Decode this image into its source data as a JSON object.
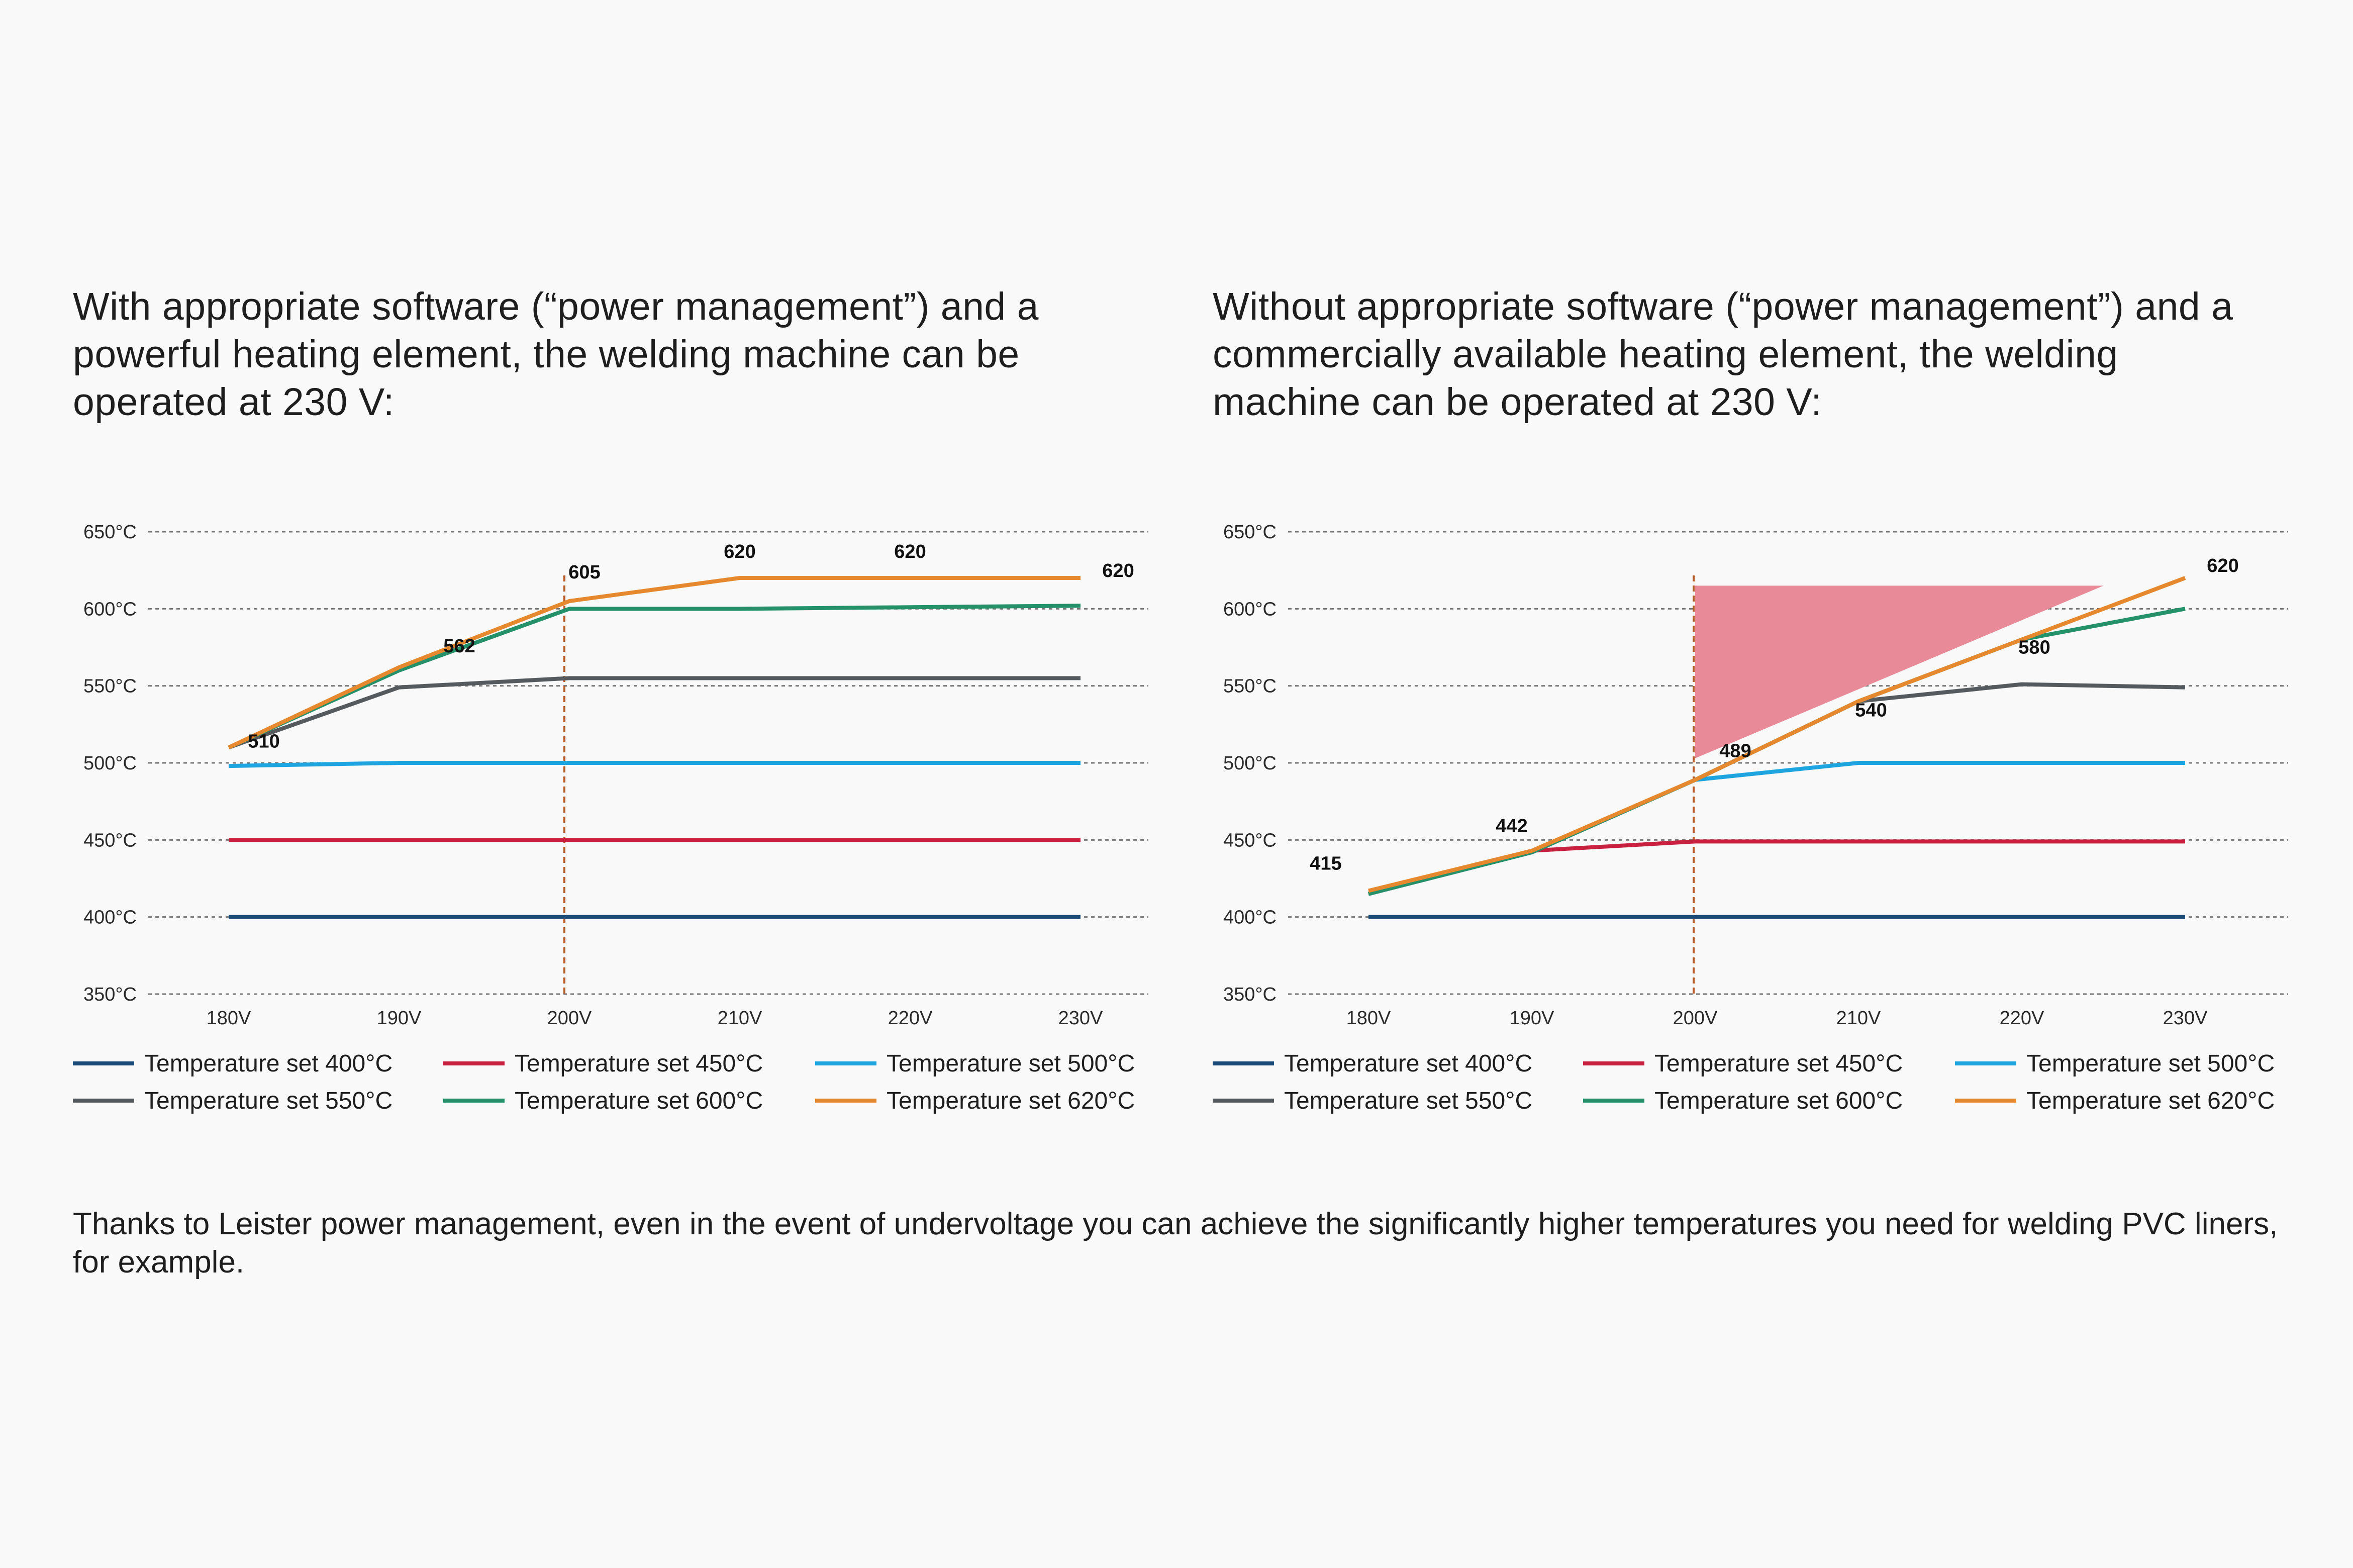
{
  "headings": {
    "left": "With appropriate software (“power management”) and a powerful heating element, the welding machine can be operated at 230 V:",
    "right": "Without appropriate software (“power management”) and a commercially available heating element, the welding machine can be operated at 230 V:"
  },
  "footer": {
    "text": "Thanks to Leister power management, even in the event of undervoltage you can achieve the significantly higher temperatures you need for welding PVC liners, for example."
  },
  "legend": [
    {
      "label": "Temperature set 400°C",
      "color": "#1a4a78"
    },
    {
      "label": "Temperature set 450°C",
      "color": "#c8213f"
    },
    {
      "label": "Temperature set 500°C",
      "color": "#1ea5e0"
    },
    {
      "label": "Temperature set 550°C",
      "color": "#555a5e"
    },
    {
      "label": "Temperature set 600°C",
      "color": "#25916a"
    },
    {
      "label": "Temperature set 620°C",
      "color": "#e6882e"
    }
  ],
  "chart_data": [
    {
      "type": "line",
      "categories": [
        "180V",
        "190V",
        "200V",
        "210V",
        "220V",
        "230V"
      ],
      "ylim": [
        350,
        650
      ],
      "yticks": [
        "650°C",
        "600°C",
        "550°C",
        "500°C",
        "450°C",
        "400°C",
        "350°C"
      ],
      "grid": true,
      "reference_line_x": 200,
      "series": [
        {
          "name": "Temperature set 400°C",
          "color": "#1a4a78",
          "x": [
            180,
            190,
            200,
            210,
            220,
            230
          ],
          "values": [
            400,
            400,
            400,
            400,
            400,
            400
          ]
        },
        {
          "name": "Temperature set 450°C",
          "color": "#c8213f",
          "x": [
            180,
            190,
            200,
            210,
            220,
            230
          ],
          "values": [
            450,
            450,
            450,
            450,
            450,
            450
          ]
        },
        {
          "name": "Temperature set 500°C",
          "color": "#1ea5e0",
          "x": [
            180,
            190,
            200,
            210,
            220,
            230
          ],
          "values": [
            498,
            500,
            500,
            500,
            500,
            500
          ]
        },
        {
          "name": "Temperature set 550°C",
          "color": "#555a5e",
          "x": [
            180,
            190,
            200,
            210,
            220,
            230
          ],
          "values": [
            510,
            549,
            555,
            555,
            555,
            555
          ]
        },
        {
          "name": "Temperature set 600°C",
          "color": "#25916a",
          "x": [
            180,
            190,
            200,
            210,
            220,
            230
          ],
          "values": [
            510,
            560,
            600,
            600,
            601,
            602
          ]
        },
        {
          "name": "Temperature set 620°C",
          "color": "#e6882e",
          "x": [
            180,
            190,
            200,
            210,
            220,
            230
          ],
          "values": [
            510,
            562,
            605,
            620,
            620,
            620
          ]
        }
      ],
      "annotations": [
        {
          "text": "510",
          "x": 180,
          "y": 510
        },
        {
          "text": "562",
          "x": 190,
          "y": 562
        },
        {
          "text": "605",
          "x": 200,
          "y": 605
        },
        {
          "text": "620",
          "x": 210,
          "y": 620
        },
        {
          "text": "620",
          "x": 220,
          "y": 620
        },
        {
          "text": "620",
          "x": 230,
          "y": 620
        }
      ]
    },
    {
      "type": "line",
      "categories": [
        "180V",
        "190V",
        "200V",
        "210V",
        "220V",
        "230V"
      ],
      "ylim": [
        350,
        650
      ],
      "yticks": [
        "650°C",
        "600°C",
        "550°C",
        "500°C",
        "450°C",
        "400°C",
        "350°C"
      ],
      "grid": true,
      "reference_line_x": 200,
      "shaded_region": {
        "color": "#e88a97",
        "points": [
          [
            200,
            615
          ],
          [
            225,
            615
          ],
          [
            200,
            503
          ]
        ]
      },
      "series": [
        {
          "name": "Temperature set 400°C",
          "color": "#1a4a78",
          "x": [
            180,
            190,
            200,
            210,
            220,
            230
          ],
          "values": [
            400,
            400,
            400,
            400,
            400,
            400
          ]
        },
        {
          "name": "Temperature set 450°C",
          "color": "#c8213f",
          "x": [
            180,
            190,
            200,
            210,
            220,
            230
          ],
          "values": [
            415,
            443,
            449,
            449,
            449,
            449
          ]
        },
        {
          "name": "Temperature set 500°C",
          "color": "#1ea5e0",
          "x": [
            180,
            190,
            200,
            210,
            220,
            230
          ],
          "values": [
            415,
            442,
            489,
            500,
            500,
            500
          ]
        },
        {
          "name": "Temperature set 550°C",
          "color": "#555a5e",
          "x": [
            180,
            190,
            200,
            210,
            220,
            230
          ],
          "values": [
            415,
            442,
            489,
            540,
            551,
            549
          ]
        },
        {
          "name": "Temperature set 600°C",
          "color": "#25916a",
          "x": [
            180,
            190,
            200,
            210,
            220,
            230
          ],
          "values": [
            415,
            442,
            489,
            540,
            580,
            600
          ]
        },
        {
          "name": "Temperature set 620°C",
          "color": "#e6882e",
          "x": [
            180,
            190,
            200,
            210,
            220,
            230
          ],
          "values": [
            417,
            443,
            489,
            540,
            580,
            620
          ]
        }
      ],
      "annotations": [
        {
          "text": "415",
          "x": 180,
          "y": 415
        },
        {
          "text": "442",
          "x": 190,
          "y": 442
        },
        {
          "text": "489",
          "x": 200,
          "y": 489
        },
        {
          "text": "540",
          "x": 210,
          "y": 540
        },
        {
          "text": "580",
          "x": 220,
          "y": 580
        },
        {
          "text": "620",
          "x": 230,
          "y": 620
        }
      ]
    }
  ]
}
